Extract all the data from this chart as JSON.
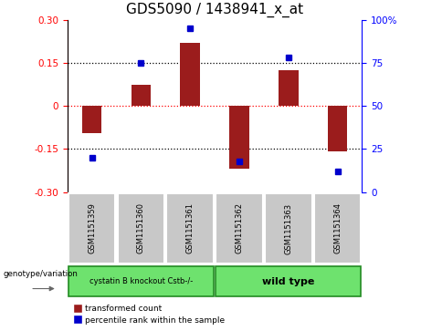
{
  "title": "GDS5090 / 1438941_x_at",
  "samples": [
    "GSM1151359",
    "GSM1151360",
    "GSM1151361",
    "GSM1151362",
    "GSM1151363",
    "GSM1151364"
  ],
  "bar_values": [
    -0.095,
    0.075,
    0.22,
    -0.22,
    0.125,
    -0.16
  ],
  "percentile_values": [
    20,
    75,
    95,
    18,
    78,
    12
  ],
  "bar_color": "#9B1C1C",
  "dot_color": "#0000CC",
  "ylim_left": [
    -0.3,
    0.3
  ],
  "ylim_right": [
    0,
    100
  ],
  "yticks_left": [
    -0.3,
    -0.15,
    0,
    0.15,
    0.3
  ],
  "yticks_right": [
    0,
    25,
    50,
    75,
    100
  ],
  "group1_label": "cystatin B knockout Cstb-/-",
  "group2_label": "wild type",
  "group_color": "#6EE26E",
  "group_edge_color": "#228B22",
  "genotype_label": "genotype/variation",
  "legend_bar_label": "transformed count",
  "legend_dot_label": "percentile rank within the sample",
  "bg_color": "#FFFFFF",
  "sample_box_color": "#C8C8C8",
  "title_fontsize": 11,
  "tick_fontsize": 7.5,
  "label_fontsize": 7
}
